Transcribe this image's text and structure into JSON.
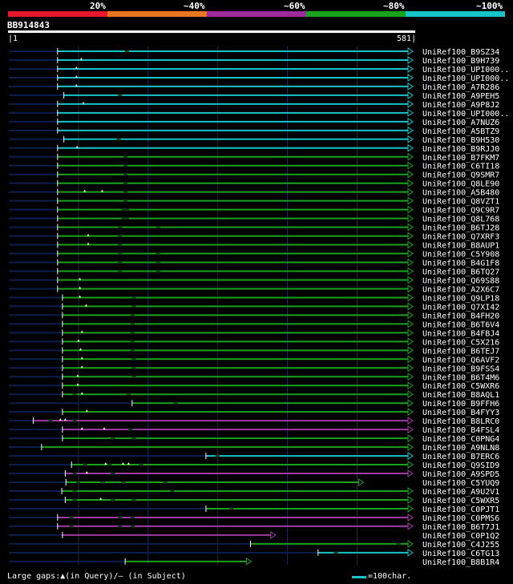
{
  "legend": {
    "labels": [
      "20%",
      "~40%",
      "~60%",
      "~80%",
      "~100%"
    ],
    "colors": [
      "#e8172e",
      "#e8751f",
      "#9c2c9c",
      "#19a31d",
      "#16c4c8"
    ]
  },
  "query": {
    "name": "BB914843",
    "start": "1",
    "end": "581",
    "length": 581
  },
  "colors": {
    "cyan": "#16c4c8",
    "green": "#19a31d",
    "magenta": "#a23aa5",
    "dark": "#0c1e4f"
  },
  "hits": [
    {
      "name": "UniRef100_B9SZ34",
      "color": "cyan",
      "start": 71,
      "end": 581,
      "gaps": [
        170
      ],
      "markers": []
    },
    {
      "name": "UniRef100_B9H739",
      "color": "cyan",
      "start": 71,
      "end": 581,
      "gaps": [],
      "markers": [
        105
      ]
    },
    {
      "name": "UniRef100_UPI000..",
      "color": "cyan",
      "start": 71,
      "end": 581,
      "gaps": [],
      "markers": [
        98
      ]
    },
    {
      "name": "UniRef100_UPI000..",
      "color": "cyan",
      "start": 71,
      "end": 581,
      "gaps": [],
      "markers": [
        98
      ]
    },
    {
      "name": "UniRef100_A7R286",
      "color": "cyan",
      "start": 71,
      "end": 581,
      "gaps": [],
      "markers": [
        98
      ]
    },
    {
      "name": "UniRef100_A9PEH5",
      "color": "cyan",
      "start": 80,
      "end": 581,
      "gaps": [
        160
      ],
      "markers": []
    },
    {
      "name": "UniRef100_A9P8J2",
      "color": "cyan",
      "start": 71,
      "end": 581,
      "gaps": [],
      "markers": [
        108
      ]
    },
    {
      "name": "UniRef100_UPI000..",
      "color": "cyan",
      "start": 71,
      "end": 581,
      "gaps": [],
      "markers": []
    },
    {
      "name": "UniRef100_A7NUZ6",
      "color": "cyan",
      "start": 71,
      "end": 581,
      "gaps": [],
      "markers": []
    },
    {
      "name": "UniRef100_A5BTZ9",
      "color": "cyan",
      "start": 71,
      "end": 581,
      "gaps": [],
      "markers": []
    },
    {
      "name": "UniRef100_B9H530",
      "color": "cyan",
      "start": 80,
      "end": 581,
      "gaps": [
        158
      ],
      "markers": []
    },
    {
      "name": "UniRef100_B9RJJ0",
      "color": "cyan",
      "start": 71,
      "end": 581,
      "gaps": [],
      "markers": [
        99
      ]
    },
    {
      "name": "UniRef100_B7FKM7",
      "color": "green",
      "start": 71,
      "end": 581,
      "gaps": [
        168
      ],
      "markers": []
    },
    {
      "name": "UniRef100_C6TI18",
      "color": "green",
      "start": 71,
      "end": 581,
      "gaps": [
        168
      ],
      "markers": []
    },
    {
      "name": "UniRef100_Q9SMR7",
      "color": "green",
      "start": 71,
      "end": 581,
      "gaps": [
        168
      ],
      "markers": []
    },
    {
      "name": "UniRef100_Q8LE90",
      "color": "green",
      "start": 71,
      "end": 581,
      "gaps": [
        168
      ],
      "markers": []
    },
    {
      "name": "UniRef100_A5B480",
      "color": "green",
      "start": 71,
      "end": 581,
      "gaps": [
        168
      ],
      "markers": [
        110,
        135
      ]
    },
    {
      "name": "UniRef100_Q8VZT1",
      "color": "green",
      "start": 71,
      "end": 581,
      "gaps": [
        168
      ],
      "markers": []
    },
    {
      "name": "UniRef100_Q9C9R7",
      "color": "green",
      "start": 71,
      "end": 581,
      "gaps": [
        165,
        170
      ],
      "markers": []
    },
    {
      "name": "UniRef100_Q8L768",
      "color": "green",
      "start": 71,
      "end": 581,
      "gaps": [
        165,
        170
      ],
      "markers": []
    },
    {
      "name": "UniRef100_B6TJ28",
      "color": "green",
      "start": 71,
      "end": 581,
      "gaps": [
        160,
        215
      ],
      "markers": []
    },
    {
      "name": "UniRef100_Q7XRF3",
      "color": "green",
      "start": 71,
      "end": 581,
      "gaps": [
        160
      ],
      "markers": [
        115
      ]
    },
    {
      "name": "UniRef100_B8AUP1",
      "color": "green",
      "start": 71,
      "end": 581,
      "gaps": [
        160
      ],
      "markers": [
        115
      ]
    },
    {
      "name": "UniRef100_C5Y908",
      "color": "green",
      "start": 71,
      "end": 581,
      "gaps": [
        160,
        215
      ],
      "markers": []
    },
    {
      "name": "UniRef100_B4G1F8",
      "color": "green",
      "start": 71,
      "end": 581,
      "gaps": [
        160,
        215
      ],
      "markers": []
    },
    {
      "name": "UniRef100_B6TQ27",
      "color": "green",
      "start": 71,
      "end": 581,
      "gaps": [
        160,
        215
      ],
      "markers": []
    },
    {
      "name": "UniRef100_Q69S88",
      "color": "green",
      "start": 71,
      "end": 581,
      "gaps": [],
      "markers": [
        103
      ]
    },
    {
      "name": "UniRef100_A2X6C7",
      "color": "green",
      "start": 71,
      "end": 581,
      "gaps": [],
      "markers": [
        103
      ]
    },
    {
      "name": "UniRef100_Q9LP18",
      "color": "green",
      "start": 78,
      "end": 581,
      "gaps": [
        180
      ],
      "markers": [
        103
      ]
    },
    {
      "name": "UniRef100_Q7XI42",
      "color": "green",
      "start": 78,
      "end": 581,
      "gaps": [
        180
      ],
      "markers": [
        112
      ]
    },
    {
      "name": "UniRef100_B4FH20",
      "color": "green",
      "start": 78,
      "end": 581,
      "gaps": [
        178
      ],
      "markers": []
    },
    {
      "name": "UniRef100_B6T6V4",
      "color": "green",
      "start": 78,
      "end": 581,
      "gaps": [
        178
      ],
      "markers": []
    },
    {
      "name": "UniRef100_B4FBJ4",
      "color": "green",
      "start": 78,
      "end": 581,
      "gaps": [
        178
      ],
      "markers": [
        106
      ]
    },
    {
      "name": "UniRef100_C5X216",
      "color": "green",
      "start": 78,
      "end": 581,
      "gaps": [
        178
      ],
      "markers": [
        101
      ]
    },
    {
      "name": "UniRef100_B6TEJ7",
      "color": "green",
      "start": 78,
      "end": 581,
      "gaps": [
        178
      ],
      "markers": [
        104
      ]
    },
    {
      "name": "UniRef100_Q6AVF2",
      "color": "green",
      "start": 78,
      "end": 581,
      "gaps": [
        180
      ],
      "markers": [
        106
      ]
    },
    {
      "name": "UniRef100_B9FSS4",
      "color": "green",
      "start": 78,
      "end": 581,
      "gaps": [
        180
      ],
      "markers": [
        106
      ]
    },
    {
      "name": "UniRef100_B6T4M6",
      "color": "green",
      "start": 78,
      "end": 581,
      "gaps": [
        180
      ],
      "markers": [
        100
      ]
    },
    {
      "name": "UniRef100_C5WXR6",
      "color": "green",
      "start": 78,
      "end": 581,
      "gaps": [],
      "markers": [
        100
      ]
    },
    {
      "name": "UniRef100_B8AQL1",
      "color": "green",
      "start": 78,
      "end": 581,
      "gaps": [
        95,
        172
      ],
      "markers": [
        106
      ]
    },
    {
      "name": "UniRef100_B9FFH6",
      "color": "green",
      "start": 178,
      "end": 581,
      "gaps": [
        240
      ],
      "markers": []
    },
    {
      "name": "UniRef100_B4FYY3",
      "color": "green",
      "start": 78,
      "end": 581,
      "gaps": [],
      "markers": [
        113
      ]
    },
    {
      "name": "UniRef100_B8LRC0",
      "color": "magenta",
      "start": 36,
      "end": 581,
      "gaps": [
        60,
        95
      ],
      "markers": [
        75,
        82
      ]
    },
    {
      "name": "UniRef100_B4FSL4",
      "color": "magenta",
      "start": 78,
      "end": 581,
      "gaps": [
        175
      ],
      "markers": [
        106,
        138
      ]
    },
    {
      "name": "UniRef100_C0PNG4",
      "color": "green",
      "start": 78,
      "end": 581,
      "gaps": [
        150,
        180
      ],
      "markers": []
    },
    {
      "name": "UniRef100_A9NLN8",
      "color": "green",
      "start": 48,
      "end": 581,
      "gaps": [],
      "markers": []
    },
    {
      "name": "UniRef100_B7ERC6",
      "color": "cyan",
      "start": 284,
      "end": 581,
      "gaps": [
        300
      ],
      "markers": []
    },
    {
      "name": "UniRef100_Q9SID9",
      "color": "green",
      "start": 91,
      "end": 581,
      "gaps": [
        110,
        145,
        190
      ],
      "markers": [
        140,
        165,
        173
      ]
    },
    {
      "name": "UniRef100_A9SPD5",
      "color": "magenta",
      "start": 82,
      "end": 581,
      "gaps": [
        95,
        150
      ],
      "markers": [
        113
      ]
    },
    {
      "name": "UniRef100_C5YUQ9",
      "color": "green",
      "start": 83,
      "end": 510,
      "gaps": [
        100,
        135,
        165,
        225
      ],
      "markers": []
    },
    {
      "name": "UniRef100_A9U2V1",
      "color": "green",
      "start": 77,
      "end": 581,
      "gaps": [
        95,
        235
      ],
      "markers": []
    },
    {
      "name": "UniRef100_C5WXR5",
      "color": "green",
      "start": 82,
      "end": 581,
      "gaps": [
        95,
        150,
        180
      ],
      "markers": [
        133
      ]
    },
    {
      "name": "UniRef100_C0PJT1",
      "color": "green",
      "start": 284,
      "end": 581,
      "gaps": [
        320
      ],
      "markers": []
    },
    {
      "name": "UniRef100_C0PMS6",
      "color": "magenta",
      "start": 71,
      "end": 581,
      "gaps": [
        90,
        160,
        178
      ],
      "markers": []
    },
    {
      "name": "UniRef100_B6T7J1",
      "color": "magenta",
      "start": 71,
      "end": 581,
      "gaps": [
        90,
        160,
        178
      ],
      "markers": []
    },
    {
      "name": "UniRef100_C0P1Q2",
      "color": "magenta",
      "start": 78,
      "end": 384,
      "gaps": [],
      "markers": []
    },
    {
      "name": "UniRef100_C4J255",
      "color": "green",
      "start": 348,
      "end": 581,
      "gaps": [
        560
      ],
      "markers": []
    },
    {
      "name": "UniRef100_C6TG13",
      "color": "cyan",
      "start": 445,
      "end": 581,
      "gaps": [
        470
      ],
      "markers": []
    },
    {
      "name": "UniRef100_B8B1R4",
      "color": "green",
      "start": 168,
      "end": 349,
      "gaps": [],
      "markers": []
    }
  ],
  "footer": {
    "gaps_text": "Large gaps:▲(in Query)/– (in Subject)",
    "scale_text": "=100char."
  }
}
